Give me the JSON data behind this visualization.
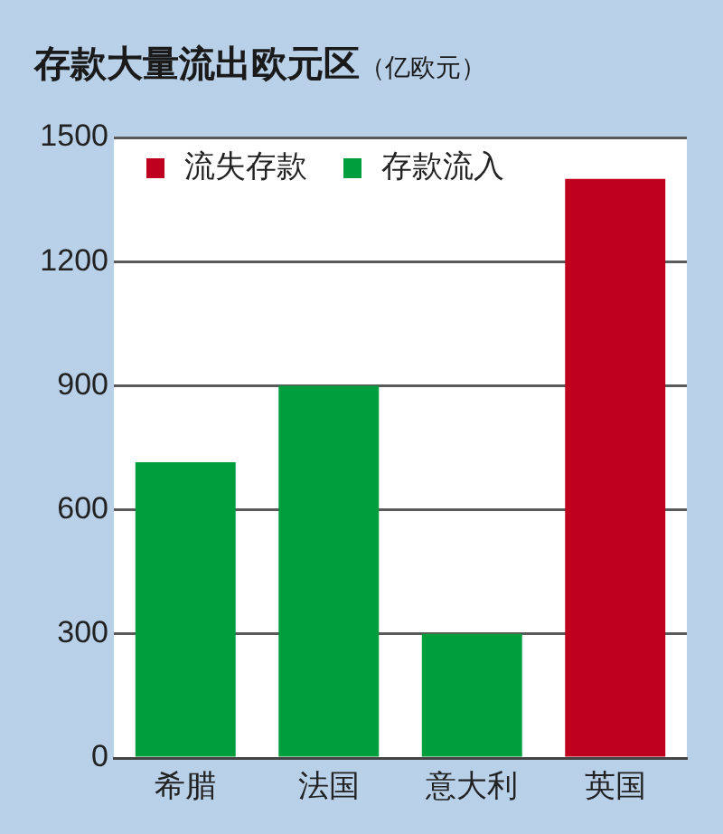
{
  "chart_data": {
    "type": "bar",
    "title": "存款大量流出欧元区",
    "subtitle": "（亿欧元）",
    "categories": [
      "希腊",
      "法国",
      "意大利",
      "英国"
    ],
    "series": [
      {
        "name": "流失存款",
        "color": "#c0001f",
        "values": [
          null,
          null,
          null,
          1400
        ]
      },
      {
        "name": "存款流入",
        "color": "#009e3d",
        "values": [
          715,
          900,
          300,
          null
        ]
      }
    ],
    "ylim": [
      0,
      1500
    ],
    "yticks": [
      0,
      300,
      600,
      900,
      1200,
      1500
    ],
    "grid": "y",
    "legend": "top left"
  }
}
